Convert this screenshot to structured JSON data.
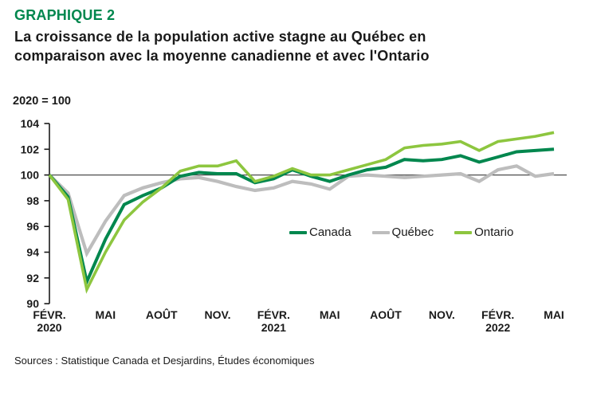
{
  "header": {
    "kicker": "GRAPHIQUE 2",
    "title_line1": "La croissance de la population active stagne au Québec en",
    "title_line2": "comparaison avec la moyenne canadienne et avec l'Ontario"
  },
  "chart_data": {
    "type": "line",
    "unit_label": "2020 = 100",
    "baseline_value": 100,
    "grid": false,
    "legend_position": "inside-center-right",
    "ylim": [
      90,
      104
    ],
    "yticks": [
      104,
      102,
      100,
      98,
      96,
      94,
      92,
      90
    ],
    "x_monthly": [
      "2020-02",
      "2020-03",
      "2020-04",
      "2020-05",
      "2020-06",
      "2020-07",
      "2020-08",
      "2020-09",
      "2020-10",
      "2020-11",
      "2020-12",
      "2021-01",
      "2021-02",
      "2021-03",
      "2021-04",
      "2021-05",
      "2021-06",
      "2021-07",
      "2021-08",
      "2021-09",
      "2021-10",
      "2021-11",
      "2021-12",
      "2022-01",
      "2022-02",
      "2022-03",
      "2022-04",
      "2022-05"
    ],
    "xticks": [
      {
        "pos": 0,
        "label": "FÉVR.",
        "year": "2020"
      },
      {
        "pos": 3,
        "label": "MAI"
      },
      {
        "pos": 6,
        "label": "AOÛT"
      },
      {
        "pos": 9,
        "label": "NOV."
      },
      {
        "pos": 12,
        "label": "FÉVR.",
        "year": "2021"
      },
      {
        "pos": 15,
        "label": "MAI"
      },
      {
        "pos": 18,
        "label": "AOÛT"
      },
      {
        "pos": 21,
        "label": "NOV."
      },
      {
        "pos": 24,
        "label": "FÉVR.",
        "year": "2022"
      },
      {
        "pos": 27,
        "label": "MAI"
      }
    ],
    "series": [
      {
        "name": "Canada",
        "color": "#00874E",
        "values": [
          100,
          98.3,
          91.7,
          95.0,
          97.7,
          98.4,
          99.0,
          99.9,
          100.2,
          100.1,
          100.1,
          99.4,
          99.7,
          100.4,
          99.9,
          99.5,
          100.0,
          100.4,
          100.6,
          101.2,
          101.1,
          101.2,
          101.5,
          101.0,
          101.4,
          101.8,
          101.9,
          102.0
        ]
      },
      {
        "name": "Québec",
        "color": "#BDBDBD",
        "values": [
          100,
          98.6,
          93.9,
          96.4,
          98.4,
          99.0,
          99.4,
          99.7,
          99.8,
          99.5,
          99.1,
          98.8,
          99.0,
          99.5,
          99.3,
          98.9,
          99.9,
          100.0,
          99.9,
          99.8,
          99.9,
          100.0,
          100.1,
          99.5,
          100.4,
          100.7,
          99.9,
          100.1
        ]
      },
      {
        "name": "Ontario",
        "color": "#8DC63F",
        "values": [
          100,
          98.1,
          91.1,
          94.0,
          96.5,
          97.9,
          99.0,
          100.3,
          100.7,
          100.7,
          101.1,
          99.5,
          99.9,
          100.5,
          100.0,
          100.0,
          100.4,
          100.8,
          101.2,
          102.1,
          102.3,
          102.4,
          102.6,
          101.9,
          102.6,
          102.8,
          103.0,
          103.3
        ]
      }
    ],
    "draw_order": [
      "Québec",
      "Canada",
      "Ontario"
    ]
  },
  "source": {
    "text": "Sources : Statistique Canada et Desjardins, Études économiques"
  },
  "colors": {
    "kicker_green": "#00874E",
    "text": "#1A1A1A",
    "axis": "#1A1A1A",
    "baseline": "#4D4D4D"
  }
}
